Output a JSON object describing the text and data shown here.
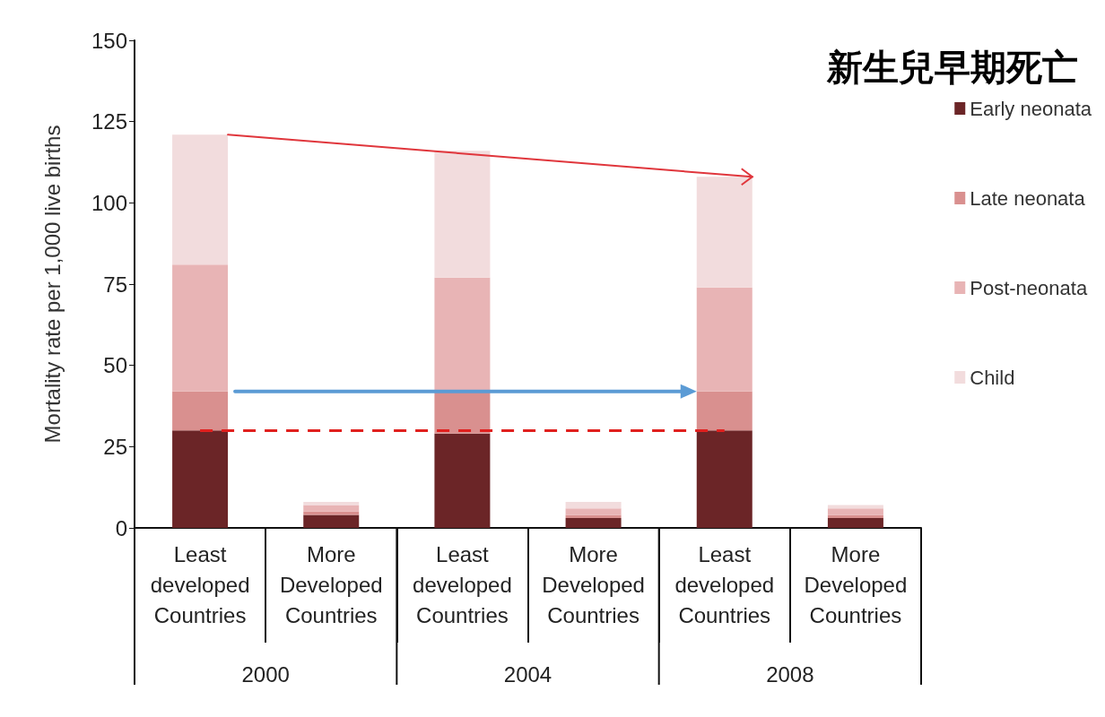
{
  "chart_data": {
    "type": "bar",
    "title": "新生兒早期死亡",
    "ylabel": "Mortality rate per 1,000 live births",
    "categories": [
      "Least\ndeveloped\nCountries",
      "More\nDeveloped\nCountries",
      "Least\ndeveloped\nCountries",
      "More\nDeveloped\nCountries",
      "Least\ndeveloped\nCountries",
      "More\nDeveloped\nCountries"
    ],
    "annotations": [
      "2000",
      "2004",
      "2008"
    ],
    "stacked": true,
    "series": [
      {
        "name": "Early neonata",
        "color": "#6b2527",
        "values": [
          30,
          4,
          29,
          3,
          30,
          3
        ]
      },
      {
        "name": "Late neonata",
        "color": "#d9908f",
        "values": [
          12,
          1,
          13,
          1,
          12,
          1
        ]
      },
      {
        "name": "Post-neonata",
        "color": "#e8b4b5",
        "values": [
          39,
          2,
          35,
          2,
          32,
          2
        ]
      },
      {
        "name": "Child",
        "color": "#f2dcdd",
        "values": [
          40,
          1,
          39,
          2,
          34,
          1
        ]
      }
    ],
    "ref_lines": [
      {
        "axis": "y",
        "value": 30,
        "color": "#e0201e",
        "line_style": "dashed"
      }
    ],
    "ylim": [
      0,
      150
    ],
    "yticks": [
      0,
      25,
      50,
      75,
      100,
      125,
      150
    ],
    "grid": false,
    "legend": "right"
  }
}
